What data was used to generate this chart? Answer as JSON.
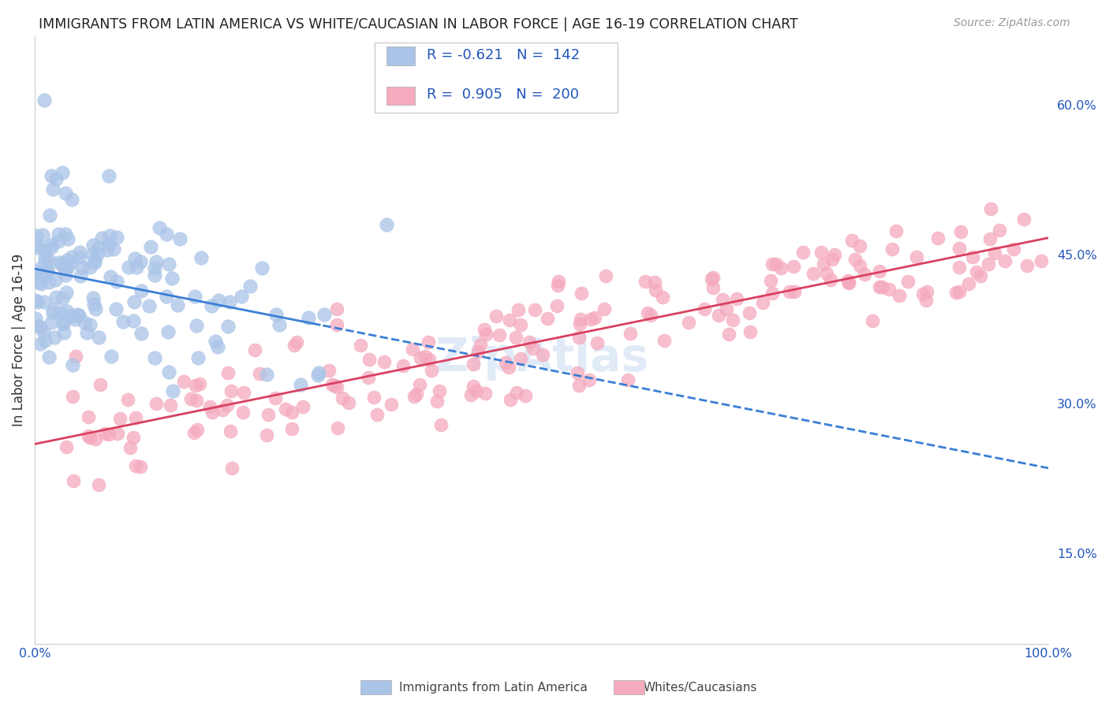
{
  "title": "IMMIGRANTS FROM LATIN AMERICA VS WHITE/CAUCASIAN IN LABOR FORCE | AGE 16-19 CORRELATION CHART",
  "source": "Source: ZipAtlas.com",
  "ylabel": "In Labor Force | Age 16-19",
  "right_yticks": [
    0.15,
    0.3,
    0.45,
    0.6
  ],
  "right_yticklabels": [
    "15.0%",
    "30.0%",
    "45.0%",
    "60.0%"
  ],
  "blue_R": -0.621,
  "blue_N": 142,
  "pink_R": 0.905,
  "pink_N": 200,
  "blue_label": "Immigrants from Latin America",
  "pink_label": "Whites/Caucasians",
  "blue_color": "#aac4e8",
  "pink_color": "#f5aabe",
  "blue_line_color": "#3a7fd5",
  "pink_line_color": "#d94060",
  "legend_R_color": "#2255bb",
  "background_color": "#ffffff",
  "grid_color": "#cccccc",
  "watermark": "ZipAtlas",
  "xlim": [
    0.0,
    1.0
  ],
  "ylim": [
    0.06,
    0.67
  ],
  "blue_scatter_seed": 42,
  "pink_scatter_seed": 7
}
